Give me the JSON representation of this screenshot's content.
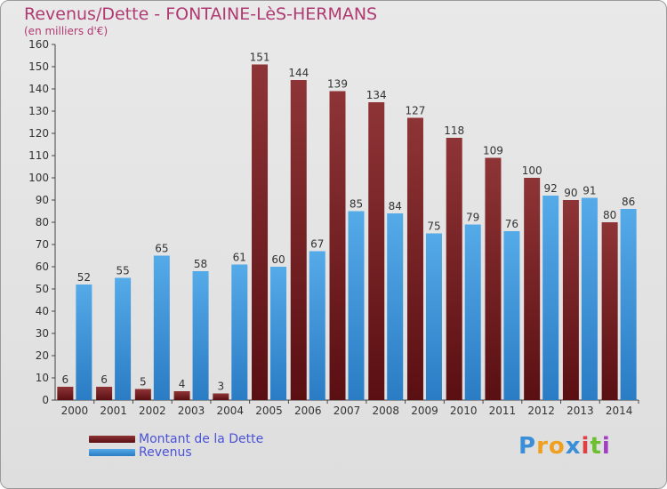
{
  "title": "Revenus/Dette - FONTAINE-LèS-HERMANS",
  "subtitle": "(en milliers d'€)",
  "chart_data": {
    "type": "bar",
    "categories": [
      "2000",
      "2001",
      "2002",
      "2003",
      "2004",
      "2005",
      "2006",
      "2007",
      "2008",
      "2009",
      "2010",
      "2011",
      "2012",
      "2013",
      "2014"
    ],
    "series": [
      {
        "name": "Montant de la Dette",
        "color": "#7a1f22",
        "values": [
          6,
          6,
          5,
          4,
          3,
          151,
          144,
          139,
          134,
          127,
          118,
          109,
          100,
          90,
          80
        ]
      },
      {
        "name": "Revenus",
        "color": "#4a9fe0",
        "values": [
          52,
          55,
          65,
          58,
          61,
          60,
          67,
          85,
          84,
          75,
          79,
          76,
          92,
          91,
          86
        ]
      }
    ],
    "yticks": [
      0,
      10,
      20,
      30,
      40,
      50,
      60,
      70,
      80,
      90,
      100,
      110,
      120,
      130,
      140,
      150,
      160
    ],
    "ylim": [
      0,
      160
    ],
    "grid": false,
    "legend_position": "bottom-left"
  },
  "logo": {
    "letters": [
      "P",
      "r",
      "o",
      "x",
      "i",
      "t",
      "i"
    ],
    "colors": [
      "#3a8fd8",
      "#f0a020",
      "#f0a020",
      "#3a8fd8",
      "#e04040",
      "#6cc030",
      "#a040c0"
    ]
  }
}
